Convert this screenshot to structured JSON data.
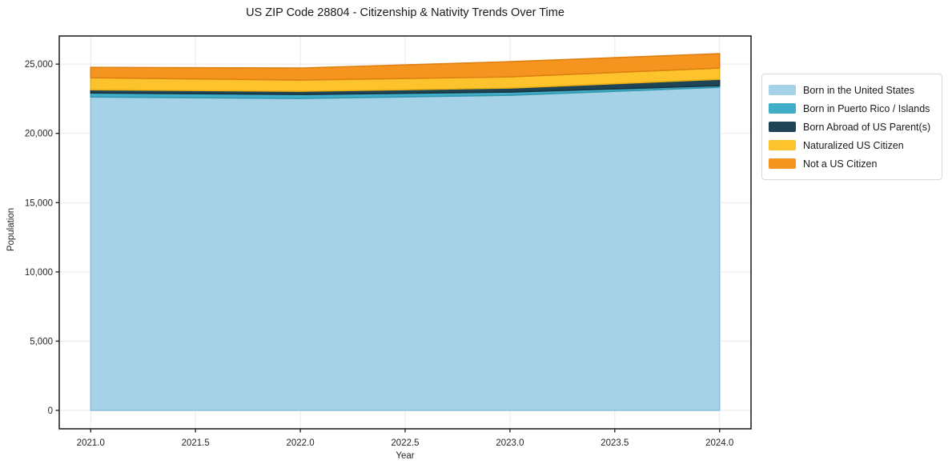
{
  "page": {
    "title": "US ZIP Code 28804 - Citizenship & Nativity Trends Over Time",
    "xlabel": "Year",
    "ylabel": "Population"
  },
  "chart_data": {
    "type": "area",
    "stacked": true,
    "title": "US ZIP Code 28804 - Citizenship & Nativity Trends Over Time",
    "xlabel": "Year",
    "ylabel": "Population",
    "x": [
      2021,
      2022,
      2023,
      2024
    ],
    "series": [
      {
        "name": "Born in the United States",
        "color": "#a6d2e8",
        "edge": "#8cc0dc",
        "values": [
          22630,
          22520,
          22750,
          23330
        ]
      },
      {
        "name": "Born in Puerto Rico / Islands",
        "color": "#41aec8",
        "edge": "#3399b1",
        "values": [
          290,
          290,
          230,
          115
        ]
      },
      {
        "name": "Born Abroad of US Parent(s)",
        "color": "#1f4456",
        "edge": "#173442",
        "values": [
          230,
          230,
          290,
          460
        ]
      },
      {
        "name": "Naturalized US Citizen",
        "color": "#fcc32d",
        "edge": "#eab014",
        "values": [
          865,
          810,
          810,
          810
        ]
      },
      {
        "name": "Not a US Citizen",
        "color": "#f5941f",
        "edge": "#de8012",
        "values": [
          750,
          865,
          1095,
          1040
        ]
      }
    ],
    "totals": [
      24765,
      24715,
      25175,
      25755
    ],
    "xticks": {
      "values": [
        2021.0,
        2021.5,
        2022.0,
        2022.5,
        2023.0,
        2023.5,
        2024.0
      ],
      "labels": [
        "2021.0",
        "2021.5",
        "2022.0",
        "2022.5",
        "2023.0",
        "2023.5",
        "2024.0"
      ]
    },
    "yticks": {
      "values": [
        0,
        5000,
        10000,
        15000,
        20000,
        25000
      ],
      "labels": [
        "0",
        "5,000",
        "10,000",
        "15,000",
        "20,000",
        "25,000"
      ]
    },
    "xlim": [
      2020.85,
      2024.15
    ],
    "ylim": [
      -1330,
      27030
    ],
    "grid": true,
    "grid_color": "#e9e9e9",
    "spine_color": "#262626",
    "legend_position": "right"
  }
}
